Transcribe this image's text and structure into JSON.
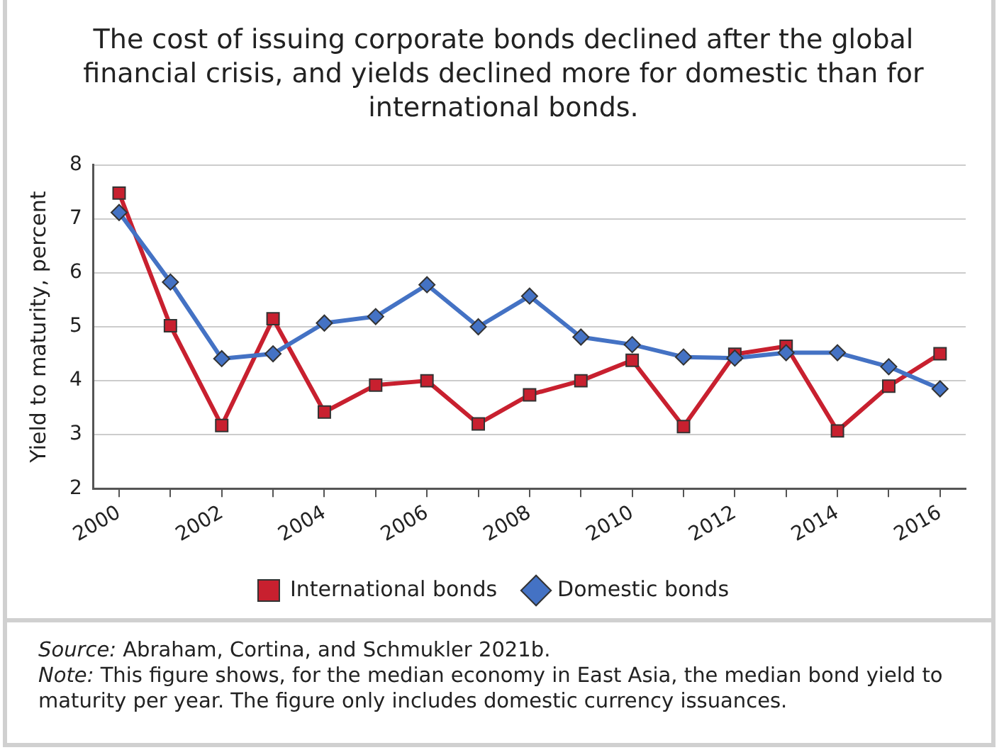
{
  "chart_data": {
    "type": "line",
    "title": "The cost of issuing corporate bonds declined after the global financial crisis, and yields declined more for domestic than for international bonds.",
    "ylabel": "Yield to maturity, percent",
    "x": [
      2000,
      2001,
      2002,
      2003,
      2004,
      2005,
      2006,
      2007,
      2008,
      2009,
      2010,
      2011,
      2012,
      2013,
      2014,
      2015,
      2016
    ],
    "series": [
      {
        "name": "International bonds",
        "color": "#c8202f",
        "marker": "square",
        "values": [
          7.48,
          5.02,
          3.17,
          5.15,
          3.42,
          3.92,
          4.0,
          3.2,
          3.74,
          4.0,
          4.38,
          3.15,
          4.49,
          4.64,
          3.07,
          3.9,
          4.5
        ]
      },
      {
        "name": "Domestic bonds",
        "color": "#4472c4",
        "marker": "diamond",
        "values": [
          7.12,
          5.83,
          4.41,
          4.5,
          5.07,
          5.19,
          5.78,
          5.0,
          5.57,
          4.81,
          4.67,
          4.44,
          4.42,
          4.52,
          4.52,
          4.26,
          3.85
        ]
      }
    ],
    "xlim": [
      1999.5,
      2016.5
    ],
    "xticks": [
      2000,
      {
        "value": 2001,
        "label": null
      },
      2002,
      {
        "value": 2003,
        "label": null
      },
      2004,
      {
        "value": 2005,
        "label": null
      },
      2006,
      {
        "value": 2007,
        "label": null
      },
      2008,
      {
        "value": 2009,
        "label": null
      },
      2010,
      {
        "value": 2011,
        "label": null
      },
      2012,
      {
        "value": 2013,
        "label": null
      },
      2014,
      {
        "value": 2015,
        "label": null
      },
      2016
    ],
    "ylim": [
      2,
      8
    ],
    "yticks": [
      2,
      3,
      4,
      5,
      6,
      7,
      8
    ],
    "grid": "y",
    "legend": "bottom",
    "line_style": "solid",
    "annotations": [
      "Source: Abraham, Cortina, and Schmukler 2021b.",
      "Note: This figure shows, for the median economy in East Asia, the median bond yield to maturity per year. The figure only includes domestic currency issuances."
    ]
  }
}
